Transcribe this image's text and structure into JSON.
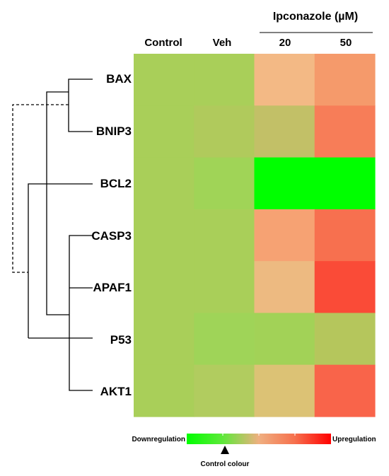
{
  "chart_data": {
    "type": "heatmap",
    "title": "",
    "group_label": "Ipconazole (µM)",
    "columns": [
      "Control",
      "Veh",
      "20",
      "50"
    ],
    "column_groups": [
      {
        "label": "Ipconazole (µM)",
        "columns": [
          "20",
          "50"
        ]
      }
    ],
    "rows": [
      "BAX",
      "BNIP3",
      "BCL2",
      "CASP3",
      "APAF1",
      "P53",
      "AKT1"
    ],
    "cell_colors": [
      [
        "#a9cf59",
        "#a9cf59",
        "#f3b985",
        "#f59a6b"
      ],
      [
        "#a9cf59",
        "#b0ca5c",
        "#c2c067",
        "#f77d58"
      ],
      [
        "#a9cf59",
        "#a0d457",
        "#00ff00",
        "#00ff00"
      ],
      [
        "#a9cf59",
        "#a9cf59",
        "#f6a273",
        "#f7704f"
      ],
      [
        "#a9cf59",
        "#a9cf59",
        "#edba81",
        "#fa4b37"
      ],
      [
        "#a9cf59",
        "#9fd458",
        "#a2d257",
        "#b5c65c"
      ],
      [
        "#a9cf59",
        "#b1cc5f",
        "#dcc275",
        "#f9644a"
      ]
    ],
    "dendrogram": {
      "side": "left",
      "dashed_link": true
    },
    "colorbar": {
      "low_label": "Downregulation",
      "high_label": "Upregulation",
      "center_label": "Control colour",
      "stops": [
        "#00ff00",
        "#5fe83a",
        "#efaf80",
        "#f6704d",
        "#ff0000"
      ]
    },
    "legend_position": "bottom-right"
  }
}
